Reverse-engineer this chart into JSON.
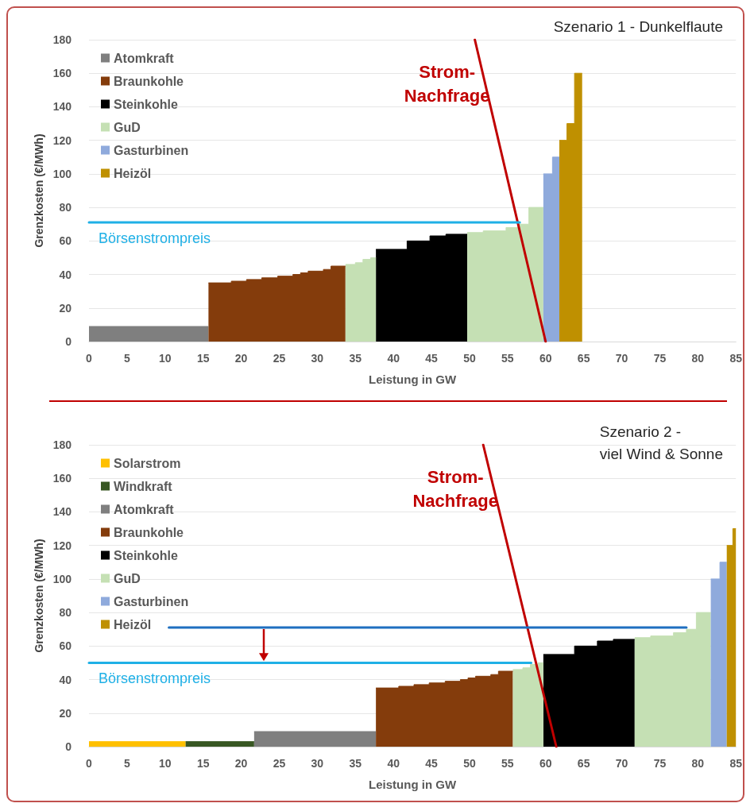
{
  "chart_data": [
    {
      "type": "area",
      "title": "Szenario 1 - Dunkelflaute",
      "xlabel": "Leistung in GW",
      "ylabel": "Grenzkosten (€/MWh)",
      "xlim": [
        0,
        85
      ],
      "xticks": [
        0,
        5,
        10,
        15,
        20,
        25,
        30,
        35,
        40,
        45,
        50,
        55,
        60,
        65,
        70,
        75,
        80,
        85
      ],
      "ylim": [
        0,
        180
      ],
      "yticks": [
        0,
        20,
        40,
        60,
        80,
        100,
        120,
        140,
        160,
        180
      ],
      "grid": "y",
      "legend": "top left",
      "series": [
        {
          "name": "Atomkraft",
          "color": "#7f7f7f",
          "x": [
            0,
            15.7
          ],
          "values": [
            9,
            9
          ]
        },
        {
          "name": "Braunkohle",
          "color": "#843c0c",
          "x": [
            15.7,
            18.7,
            18.7,
            20.7,
            20.7,
            22.7,
            22.7,
            24.8,
            24.8,
            26.8,
            26.8,
            27.8,
            27.8,
            28.8,
            28.8,
            30.8,
            30.8,
            31.8,
            31.8,
            33.7
          ],
          "values": [
            35,
            35,
            36,
            36,
            37,
            37,
            38,
            38,
            39,
            39,
            40,
            40,
            41,
            41,
            42,
            42,
            43,
            43,
            45,
            45
          ]
        },
        {
          "name": "Steinkohle",
          "color": "#000000",
          "x": [
            37.7,
            41.8,
            41.8,
            44.8,
            44.8,
            46.9,
            46.9,
            49.7
          ],
          "values": [
            55,
            55,
            60,
            60,
            63,
            63,
            64,
            64
          ]
        },
        {
          "name": "GuD",
          "color": "#c5e0b4",
          "x": [
            33.7,
            35,
            35,
            36,
            36,
            37,
            37,
            37.7,
            43.7,
            49.7,
            51.8,
            51.8,
            54.8,
            54.8,
            56.5,
            56.5,
            57.8,
            57.8,
            59.7
          ],
          "values": [
            46,
            46,
            47,
            47,
            49,
            49,
            50,
            50,
            null,
            65,
            65,
            66,
            66,
            68,
            68,
            70,
            70,
            80,
            80
          ]
        },
        {
          "name": "Gasturbinen",
          "color": "#8faadc",
          "x": [
            59.7,
            60.9,
            60.9,
            61.8
          ],
          "values": [
            100,
            100,
            110,
            110
          ]
        },
        {
          "name": "Heizöl",
          "color": "#bf9000",
          "x": [
            61.8,
            62.8,
            62.8,
            63.8,
            63.8,
            64.8
          ],
          "values": [
            120,
            120,
            130,
            130,
            160,
            160
          ]
        },
        {
          "type": "line",
          "name": "Strom-\nNachfrage",
          "color": "#c00000",
          "x": [
            50.7,
            60
          ],
          "values": [
            180,
            0
          ]
        },
        {
          "type": "line",
          "name": "Börsenstrompreis",
          "color": "#1fb0e6",
          "x": [
            0,
            56.6
          ],
          "values": [
            71,
            71
          ]
        }
      ]
    },
    {
      "type": "area",
      "title": "Szenario 2 -\nviel Wind & Sonne",
      "xlabel": "Leistung in GW",
      "ylabel": "Grenzkosten (€/MWh)",
      "xlim": [
        0,
        85
      ],
      "xticks": [
        0,
        5,
        10,
        15,
        20,
        25,
        30,
        35,
        40,
        45,
        50,
        55,
        60,
        65,
        70,
        75,
        80,
        85
      ],
      "ylim": [
        0,
        180
      ],
      "yticks": [
        0,
        20,
        40,
        60,
        80,
        100,
        120,
        140,
        160,
        180
      ],
      "grid": "y",
      "legend": "top left",
      "series": [
        {
          "name": "Solarstrom",
          "color": "#ffc000",
          "x": [
            0,
            12.7
          ],
          "values": [
            3,
            3
          ]
        },
        {
          "name": "Windkraft",
          "color": "#385723",
          "x": [
            12.7,
            21.7
          ],
          "values": [
            3,
            3
          ]
        },
        {
          "name": "Atomkraft",
          "color": "#7f7f7f",
          "x": [
            21.7,
            37.7
          ],
          "values": [
            9,
            9
          ]
        },
        {
          "name": "Braunkohle",
          "color": "#843c0c",
          "x": [
            37.7,
            40.7,
            40.7,
            42.7,
            42.7,
            44.7,
            44.7,
            46.8,
            46.8,
            48.8,
            48.8,
            49.8,
            49.8,
            50.8,
            50.8,
            52.8,
            52.8,
            53.8,
            53.8,
            55.7
          ],
          "values": [
            35,
            35,
            36,
            36,
            37,
            37,
            38,
            38,
            39,
            39,
            40,
            40,
            41,
            41,
            42,
            42,
            43,
            43,
            45,
            45
          ]
        },
        {
          "name": "Steinkohle",
          "color": "#000000",
          "x": [
            59.7,
            63.8,
            63.8,
            66.8,
            66.8,
            68.9,
            68.9,
            71.7
          ],
          "values": [
            55,
            55,
            60,
            60,
            63,
            63,
            64,
            64
          ]
        },
        {
          "name": "GuD",
          "color": "#c5e0b4",
          "x": [
            55.7,
            57,
            57,
            58,
            58,
            59,
            59,
            59.7,
            65.7,
            71.7,
            73.8,
            73.8,
            76.8,
            76.8,
            78.5,
            78.5,
            79.8,
            79.8,
            81.7
          ],
          "values": [
            46,
            46,
            47,
            47,
            49,
            49,
            50,
            50,
            null,
            65,
            65,
            66,
            66,
            68,
            68,
            70,
            70,
            80,
            80
          ]
        },
        {
          "name": "Gasturbinen",
          "color": "#8faadc",
          "x": [
            81.7,
            82.9,
            82.9,
            83.8
          ],
          "values": [
            100,
            100,
            110,
            110
          ]
        },
        {
          "name": "Heizöl",
          "color": "#bf9000",
          "x": [
            83.8,
            84.6,
            84.6,
            85
          ],
          "values": [
            120,
            120,
            130,
            130
          ]
        },
        {
          "type": "line",
          "name": "Strom-\nNachfrage",
          "color": "#c00000",
          "x": [
            51.8,
            61.4
          ],
          "values": [
            180,
            0
          ]
        },
        {
          "type": "line",
          "color": "#1f6fc0",
          "x": [
            10.5,
            78.5
          ],
          "values": [
            71,
            71
          ]
        },
        {
          "type": "line",
          "name": "Börsenstrompreis",
          "color": "#1fb0e6",
          "x": [
            0,
            58.1
          ],
          "values": [
            50,
            50
          ]
        }
      ]
    }
  ]
}
